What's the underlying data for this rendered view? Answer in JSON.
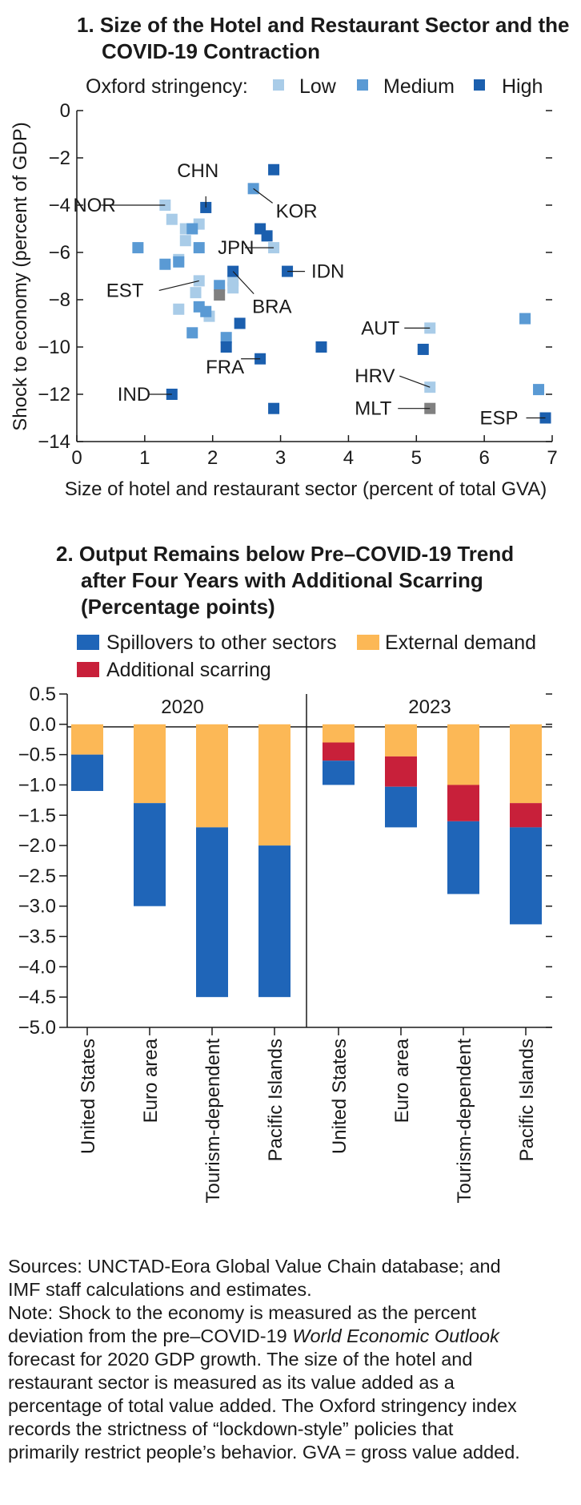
{
  "chart_data": [
    {
      "type": "scatter",
      "title_lines": [
        "1. Size of the Hotel and Restaurant Sector and the",
        "COVID-19 Contraction"
      ],
      "xlabel": "Size of hotel and restaurant sector (percent of total GVA)",
      "ylabel": "Shock to economy (percent of GDP)",
      "xlim": [
        0,
        7
      ],
      "ylim": [
        -14,
        0
      ],
      "xticks": [
        "0",
        "1",
        "2",
        "3",
        "4",
        "5",
        "6",
        "7"
      ],
      "yticks": [
        "0",
        "−2",
        "−4",
        "−6",
        "−8",
        "−10",
        "−12",
        "−14"
      ],
      "legend_title": "Oxford stringency:",
      "legend": [
        {
          "name": "Low",
          "color": "#a9cce8"
        },
        {
          "name": "Medium",
          "color": "#5a9ad4"
        },
        {
          "name": "High",
          "color": "#1b5fae"
        }
      ],
      "unclassified_color": "#808080",
      "points": [
        {
          "x": 1.3,
          "y": -4.0,
          "group": "Low"
        },
        {
          "x": 1.4,
          "y": -4.6,
          "group": "Low"
        },
        {
          "x": 1.6,
          "y": -5.0,
          "group": "Low"
        },
        {
          "x": 1.8,
          "y": -4.8,
          "group": "Low"
        },
        {
          "x": 1.6,
          "y": -5.5,
          "group": "Low"
        },
        {
          "x": 1.5,
          "y": -6.3,
          "group": "Low"
        },
        {
          "x": 1.8,
          "y": -7.2,
          "group": "Low"
        },
        {
          "x": 1.75,
          "y": -7.7,
          "group": "Low"
        },
        {
          "x": 1.5,
          "y": -8.4,
          "group": "Low"
        },
        {
          "x": 1.95,
          "y": -8.7,
          "group": "Low"
        },
        {
          "x": 2.3,
          "y": -7.2,
          "group": "Low"
        },
        {
          "x": 2.3,
          "y": -7.5,
          "group": "Low"
        },
        {
          "x": 2.9,
          "y": -5.8,
          "group": "Low"
        },
        {
          "x": 5.2,
          "y": -9.2,
          "group": "Low"
        },
        {
          "x": 5.2,
          "y": -11.7,
          "group": "Low"
        },
        {
          "x": 0.9,
          "y": -5.8,
          "group": "Medium"
        },
        {
          "x": 1.3,
          "y": -6.5,
          "group": "Medium"
        },
        {
          "x": 1.5,
          "y": -6.4,
          "group": "Medium"
        },
        {
          "x": 1.7,
          "y": -5.0,
          "group": "Medium"
        },
        {
          "x": 1.8,
          "y": -5.8,
          "group": "Medium"
        },
        {
          "x": 1.7,
          "y": -9.4,
          "group": "Medium"
        },
        {
          "x": 1.8,
          "y": -8.3,
          "group": "Medium"
        },
        {
          "x": 1.9,
          "y": -8.5,
          "group": "Medium"
        },
        {
          "x": 2.1,
          "y": -7.4,
          "group": "Medium"
        },
        {
          "x": 2.2,
          "y": -9.6,
          "group": "Medium"
        },
        {
          "x": 2.6,
          "y": -3.3,
          "group": "Medium"
        },
        {
          "x": 6.6,
          "y": -8.8,
          "group": "Medium"
        },
        {
          "x": 6.8,
          "y": -11.8,
          "group": "Medium"
        },
        {
          "x": 1.9,
          "y": -4.1,
          "group": "High"
        },
        {
          "x": 2.9,
          "y": -2.5,
          "group": "High"
        },
        {
          "x": 2.7,
          "y": -5.0,
          "group": "High"
        },
        {
          "x": 2.8,
          "y": -5.3,
          "group": "High"
        },
        {
          "x": 3.1,
          "y": -6.8,
          "group": "High"
        },
        {
          "x": 2.3,
          "y": -6.8,
          "group": "High"
        },
        {
          "x": 2.4,
          "y": -9.0,
          "group": "High"
        },
        {
          "x": 2.2,
          "y": -10.0,
          "group": "High"
        },
        {
          "x": 2.7,
          "y": -10.5,
          "group": "High"
        },
        {
          "x": 3.6,
          "y": -10.0,
          "group": "High"
        },
        {
          "x": 1.4,
          "y": -12.0,
          "group": "High"
        },
        {
          "x": 2.9,
          "y": -12.6,
          "group": "High"
        },
        {
          "x": 5.1,
          "y": -10.1,
          "group": "High"
        },
        {
          "x": 6.9,
          "y": -13.0,
          "group": "High"
        },
        {
          "x": 2.1,
          "y": -7.8,
          "group": "Unclassified"
        },
        {
          "x": 5.2,
          "y": -12.6,
          "group": "Unclassified"
        }
      ],
      "labels": [
        {
          "text": "CHN",
          "x": 1.9,
          "y": -4.1
        },
        {
          "text": "NOR",
          "x": 1.3,
          "y": -4.0
        },
        {
          "text": "KOR",
          "x": 2.6,
          "y": -3.3
        },
        {
          "text": "JPN",
          "x": 2.9,
          "y": -5.8
        },
        {
          "text": "IDN",
          "x": 3.1,
          "y": -6.8
        },
        {
          "text": "EST",
          "x": 1.8,
          "y": -7.2
        },
        {
          "text": "BRA",
          "x": 2.3,
          "y": -6.8
        },
        {
          "text": "AUT",
          "x": 5.2,
          "y": -9.2
        },
        {
          "text": "FRA",
          "x": 2.7,
          "y": -10.5
        },
        {
          "text": "HRV",
          "x": 5.2,
          "y": -11.7
        },
        {
          "text": "IND",
          "x": 1.4,
          "y": -12.0
        },
        {
          "text": "MLT",
          "x": 5.2,
          "y": -12.6
        },
        {
          "text": "ESP",
          "x": 6.9,
          "y": -13.0
        }
      ]
    },
    {
      "type": "bar",
      "stacked": true,
      "title_lines": [
        "2. Output Remains below Pre–COVID-19 Trend",
        "after Four Years with Additional Scarring",
        "(Percentage points)"
      ],
      "ylim": [
        -5.0,
        0.5
      ],
      "yticks": [
        "0.5",
        "0.0",
        "−0.5",
        "−1.0",
        "−1.5",
        "−2.0",
        "−2.5",
        "−3.0",
        "−3.5",
        "−4.0",
        "−4.5",
        "−5.0"
      ],
      "panels": [
        "2020",
        "2023"
      ],
      "categories": [
        "United States",
        "Euro area",
        "Tourism-dependent",
        "Pacific Islands",
        "United States",
        "Euro area",
        "Tourism-dependent",
        "Pacific Islands"
      ],
      "legend": [
        {
          "name": "Spillovers to other sectors",
          "color": "#1f65b8"
        },
        {
          "name": "External demand",
          "color": "#fcb856"
        },
        {
          "name": "Additional scarring",
          "color": "#c8203a"
        }
      ],
      "series": [
        {
          "name": "External demand",
          "values": [
            -0.5,
            -1.3,
            -1.7,
            -2.0,
            -0.3,
            -0.53,
            -1.0,
            -1.3
          ]
        },
        {
          "name": "Additional scarring",
          "values": [
            0,
            0,
            0,
            0,
            -0.3,
            -0.5,
            -0.6,
            -0.4
          ]
        },
        {
          "name": "Spillovers to other sectors",
          "values": [
            -0.6,
            -1.7,
            -2.8,
            -2.5,
            -0.4,
            -0.67,
            -1.2,
            -1.6
          ]
        }
      ]
    }
  ],
  "notes": {
    "sources_line1": "Sources: UNCTAD-Eora Global Value Chain database; and",
    "sources_line2": "IMF staff calculations and estimates.",
    "note_line1": "Note: Shock to the economy is measured as the percent",
    "note_line2_before": "deviation from the pre–COVID-19 ",
    "note_line2_italic": "World Economic Outlook",
    "note_line3": "forecast for 2020 GDP growth. The size of the hotel and",
    "note_line4": "restaurant sector is measured as its value added as a",
    "note_line5": "percentage of total value added. The Oxford stringency index",
    "note_line6": "records the strictness of “lockdown-style” policies that",
    "note_line7": "primarily restrict people’s behavior. GVA = gross value added."
  }
}
